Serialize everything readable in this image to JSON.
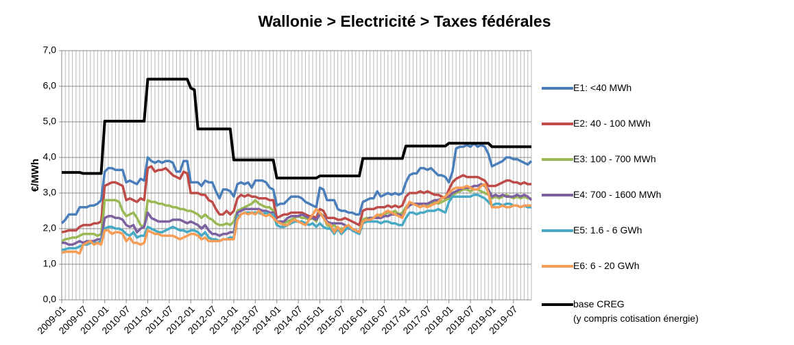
{
  "chart_data": {
    "type": "line",
    "title": "Wallonie > Electricité > Taxes fédérales",
    "y_label": "€/MWh",
    "categories": [
      "2009-01",
      null,
      null,
      null,
      null,
      null,
      "2009-07",
      null,
      null,
      null,
      null,
      null,
      "2010-01",
      null,
      null,
      null,
      null,
      null,
      "2010-07",
      null,
      null,
      null,
      null,
      null,
      "2011-01",
      null,
      null,
      null,
      null,
      null,
      "2011-07",
      null,
      null,
      null,
      null,
      null,
      "2012-01",
      null,
      null,
      null,
      null,
      null,
      "2012-07",
      null,
      null,
      null,
      null,
      null,
      "2013-01",
      null,
      null,
      null,
      null,
      null,
      "2013-07",
      null,
      null,
      null,
      null,
      null,
      "2014-01",
      null,
      null,
      null,
      null,
      null,
      "2014-07",
      null,
      null,
      null,
      null,
      null,
      "2015-01",
      null,
      null,
      null,
      null,
      null,
      "2015-07",
      null,
      null,
      null,
      null,
      null,
      "2016-01",
      null,
      null,
      null,
      null,
      null,
      "2016-07",
      null,
      null,
      null,
      null,
      null,
      "2017-01",
      null,
      null,
      null,
      null,
      null,
      "2017-07",
      null,
      null,
      null,
      null,
      null,
      "2018-01",
      null,
      null,
      null,
      null,
      null,
      "2018-07",
      null,
      null,
      null,
      null,
      null,
      "2019-01",
      null,
      null,
      null,
      null,
      null,
      "2019-07",
      null,
      null,
      null,
      null,
      null
    ],
    "ylim": [
      0,
      7
    ],
    "yticks": [
      {
        "value": 0,
        "label": "0,0"
      },
      {
        "value": 1,
        "label": "1,0"
      },
      {
        "value": 2,
        "label": "2,0"
      },
      {
        "value": 3,
        "label": "3,0"
      },
      {
        "value": 4,
        "label": "4,0"
      },
      {
        "value": 5,
        "label": "5,0"
      },
      {
        "value": 6,
        "label": "6,0"
      },
      {
        "value": 7,
        "label": "7,0"
      }
    ],
    "grid": true,
    "legend": "right",
    "series": [
      {
        "name": "E1: <40 MWh",
        "color": "#4a7ebb",
        "values": [
          2.15,
          2.25,
          2.4,
          2.4,
          2.4,
          2.6,
          2.6,
          2.6,
          2.65,
          2.65,
          2.7,
          2.8,
          3.6,
          3.7,
          3.7,
          3.65,
          3.65,
          3.65,
          3.3,
          3.35,
          3.3,
          3.25,
          3.4,
          3.35,
          4.0,
          3.9,
          3.85,
          3.9,
          3.85,
          3.9,
          3.9,
          3.85,
          3.6,
          3.6,
          3.9,
          3.9,
          3.3,
          3.3,
          3.3,
          3.2,
          3.35,
          3.3,
          3.3,
          3.05,
          2.85,
          3.1,
          3.1,
          3.05,
          2.9,
          3.25,
          3.3,
          3.25,
          3.3,
          3.15,
          3.35,
          3.35,
          3.35,
          3.3,
          3.15,
          3.1,
          2.65,
          2.7,
          2.7,
          2.8,
          2.9,
          2.9,
          2.9,
          2.85,
          2.75,
          2.7,
          2.65,
          2.6,
          3.15,
          3.1,
          2.8,
          2.8,
          2.8,
          2.55,
          2.5,
          2.5,
          2.45,
          2.45,
          2.4,
          2.4,
          2.75,
          2.8,
          2.85,
          2.85,
          3.05,
          2.9,
          2.95,
          3.0,
          2.95,
          3.0,
          2.95,
          3.0,
          3.3,
          3.5,
          3.55,
          3.55,
          3.7,
          3.7,
          3.65,
          3.7,
          3.6,
          3.5,
          3.5,
          3.45,
          3.3,
          3.6,
          4.25,
          4.3,
          4.3,
          4.35,
          4.3,
          4.4,
          4.3,
          4.35,
          4.3,
          4.1,
          3.75,
          3.8,
          3.85,
          3.9,
          4.0,
          4.0,
          3.95,
          3.95,
          3.9,
          3.85,
          3.8,
          3.9
        ]
      },
      {
        "name": "E2: 40 - 100 MWh",
        "color": "#be4b48",
        "values": [
          1.9,
          1.92,
          1.95,
          1.95,
          1.95,
          2.05,
          2.1,
          2.1,
          2.1,
          2.15,
          2.15,
          2.2,
          3.2,
          3.25,
          3.3,
          3.3,
          3.25,
          3.2,
          2.8,
          2.85,
          2.8,
          2.75,
          2.85,
          2.8,
          3.7,
          3.75,
          3.6,
          3.65,
          3.65,
          3.7,
          3.6,
          3.5,
          3.45,
          3.4,
          3.6,
          3.55,
          3.0,
          3.0,
          3.0,
          2.95,
          2.95,
          2.8,
          2.75,
          2.55,
          2.4,
          2.4,
          2.5,
          2.4,
          2.5,
          2.85,
          2.95,
          2.9,
          2.95,
          2.9,
          2.9,
          2.85,
          2.85,
          2.85,
          2.8,
          2.8,
          2.3,
          2.35,
          2.4,
          2.4,
          2.45,
          2.45,
          2.45,
          2.45,
          2.4,
          2.35,
          2.35,
          2.3,
          2.55,
          2.5,
          2.3,
          2.3,
          2.3,
          2.25,
          2.25,
          2.3,
          2.25,
          2.2,
          2.15,
          2.1,
          2.5,
          2.55,
          2.55,
          2.55,
          2.6,
          2.6,
          2.6,
          2.65,
          2.6,
          2.65,
          2.6,
          2.65,
          2.9,
          3.0,
          3.0,
          3.0,
          3.05,
          3.0,
          3.05,
          3.0,
          2.95,
          2.95,
          2.9,
          2.85,
          3.1,
          3.3,
          3.4,
          3.45,
          3.5,
          3.45,
          3.45,
          3.45,
          3.45,
          3.4,
          3.35,
          3.2,
          3.2,
          3.2,
          3.25,
          3.3,
          3.35,
          3.35,
          3.3,
          3.3,
          3.25,
          3.3,
          3.25,
          3.25
        ]
      },
      {
        "name": "E3: 100 - 700 MWh",
        "color": "#98b954",
        "values": [
          1.65,
          1.7,
          1.72,
          1.75,
          1.75,
          1.8,
          1.85,
          1.85,
          1.85,
          1.85,
          1.8,
          1.85,
          2.8,
          2.8,
          2.8,
          2.8,
          2.75,
          2.5,
          2.35,
          2.4,
          2.45,
          2.3,
          2.1,
          2.05,
          2.8,
          2.75,
          2.75,
          2.7,
          2.7,
          2.65,
          2.65,
          2.6,
          2.6,
          2.55,
          2.55,
          2.5,
          2.5,
          2.45,
          2.4,
          2.3,
          2.4,
          2.3,
          2.25,
          2.15,
          2.1,
          2.1,
          2.15,
          2.1,
          2.2,
          2.5,
          2.55,
          2.6,
          2.65,
          2.7,
          2.8,
          2.7,
          2.65,
          2.6,
          2.6,
          2.5,
          2.15,
          2.2,
          2.15,
          2.2,
          2.25,
          2.3,
          2.35,
          2.3,
          2.3,
          2.25,
          2.3,
          2.2,
          2.45,
          2.35,
          2.1,
          2.05,
          2.1,
          2.0,
          2.0,
          2.0,
          2.05,
          2.0,
          1.95,
          1.9,
          2.25,
          2.3,
          2.3,
          2.3,
          2.35,
          2.4,
          2.4,
          2.45,
          2.45,
          2.5,
          2.4,
          2.45,
          2.6,
          2.7,
          2.7,
          2.65,
          2.7,
          2.65,
          2.65,
          2.7,
          2.75,
          2.7,
          2.75,
          2.8,
          2.85,
          2.95,
          3.0,
          3.05,
          3.1,
          3.1,
          3.05,
          3.1,
          3.1,
          3.05,
          3.0,
          2.95,
          2.85,
          2.9,
          2.85,
          2.9,
          2.95,
          2.9,
          2.85,
          2.9,
          2.85,
          2.9,
          2.85,
          2.85
        ]
      },
      {
        "name": "E4: 700 - 1600 MWh",
        "color": "#7d60a0",
        "values": [
          1.6,
          1.6,
          1.55,
          1.55,
          1.6,
          1.65,
          1.6,
          1.65,
          1.65,
          1.65,
          1.7,
          1.7,
          2.3,
          2.35,
          2.35,
          2.3,
          2.3,
          2.25,
          2.1,
          2.05,
          2.1,
          1.9,
          2.0,
          2.05,
          2.45,
          2.3,
          2.25,
          2.2,
          2.2,
          2.2,
          2.2,
          2.25,
          2.25,
          2.25,
          2.2,
          2.15,
          2.2,
          2.15,
          2.1,
          2.0,
          2.1,
          1.95,
          1.85,
          1.85,
          1.8,
          1.85,
          1.85,
          1.9,
          1.9,
          2.45,
          2.5,
          2.55,
          2.55,
          2.55,
          2.55,
          2.55,
          2.5,
          2.5,
          2.45,
          2.45,
          2.2,
          2.2,
          2.2,
          2.3,
          2.35,
          2.35,
          2.35,
          2.4,
          2.35,
          2.3,
          2.3,
          2.25,
          2.4,
          2.35,
          2.2,
          2.15,
          2.15,
          2.15,
          2.15,
          2.1,
          2.0,
          2.0,
          1.95,
          1.9,
          2.2,
          2.25,
          2.3,
          2.3,
          2.3,
          2.3,
          2.35,
          2.35,
          2.4,
          2.4,
          2.4,
          2.35,
          2.55,
          2.65,
          2.7,
          2.7,
          2.7,
          2.7,
          2.7,
          2.75,
          2.8,
          2.8,
          2.85,
          2.9,
          2.9,
          3.0,
          3.05,
          3.1,
          3.15,
          3.15,
          3.15,
          3.2,
          3.2,
          3.25,
          3.2,
          3.1,
          2.9,
          2.95,
          2.9,
          2.95,
          2.9,
          2.9,
          2.9,
          2.95,
          2.9,
          2.95,
          2.9,
          2.8
        ]
      },
      {
        "name": "E5: 1.6 - 6 GWh",
        "color": "#46aac5",
        "values": [
          1.4,
          1.42,
          1.45,
          1.45,
          1.45,
          1.5,
          1.55,
          1.55,
          1.6,
          1.6,
          1.6,
          1.65,
          2.0,
          2.05,
          2.05,
          2.0,
          2.0,
          1.95,
          1.85,
          1.8,
          1.9,
          1.75,
          1.8,
          1.8,
          2.05,
          2.0,
          1.95,
          1.9,
          1.9,
          1.95,
          2.0,
          2.05,
          2.0,
          1.95,
          1.95,
          1.9,
          1.95,
          1.95,
          1.9,
          1.8,
          1.9,
          1.75,
          1.7,
          1.7,
          1.65,
          1.7,
          1.7,
          1.75,
          1.75,
          2.35,
          2.4,
          2.45,
          2.45,
          2.45,
          2.45,
          2.45,
          2.4,
          2.45,
          2.4,
          2.4,
          2.1,
          2.05,
          2.05,
          2.1,
          2.15,
          2.2,
          2.2,
          2.2,
          2.15,
          2.1,
          2.15,
          2.05,
          2.15,
          2.05,
          2.0,
          2.0,
          1.85,
          2.0,
          1.85,
          1.95,
          2.05,
          1.95,
          1.9,
          1.85,
          2.15,
          2.2,
          2.2,
          2.2,
          2.2,
          2.15,
          2.2,
          2.2,
          2.15,
          2.15,
          2.1,
          2.1,
          2.3,
          2.45,
          2.45,
          2.4,
          2.45,
          2.45,
          2.5,
          2.5,
          2.5,
          2.55,
          2.5,
          2.45,
          2.75,
          2.9,
          2.9,
          2.9,
          2.9,
          2.9,
          2.9,
          2.95,
          2.95,
          2.9,
          2.85,
          2.75,
          2.65,
          2.7,
          2.7,
          2.65,
          2.7,
          2.7,
          2.65,
          2.65,
          2.6,
          2.65,
          2.6,
          2.6
        ]
      },
      {
        "name": "E6: 6 - 20 GWh",
        "color": "#f59d56",
        "values": [
          1.32,
          1.35,
          1.35,
          1.35,
          1.35,
          1.3,
          1.55,
          1.6,
          1.65,
          1.55,
          1.6,
          1.55,
          1.95,
          1.95,
          1.85,
          1.9,
          1.9,
          1.85,
          1.65,
          1.75,
          1.6,
          1.6,
          1.55,
          1.6,
          1.95,
          1.9,
          1.85,
          1.85,
          1.8,
          1.8,
          1.8,
          1.8,
          1.75,
          1.7,
          1.75,
          1.8,
          1.85,
          1.85,
          1.8,
          1.7,
          1.75,
          1.65,
          1.65,
          1.65,
          1.65,
          1.7,
          1.7,
          1.7,
          1.7,
          2.25,
          2.4,
          2.45,
          2.4,
          2.45,
          2.4,
          2.5,
          2.4,
          2.35,
          2.4,
          2.3,
          2.2,
          2.15,
          2.1,
          2.1,
          2.2,
          2.25,
          2.2,
          2.15,
          2.1,
          2.25,
          2.4,
          2.55,
          2.45,
          2.3,
          2.15,
          2.1,
          1.9,
          2.05,
          1.9,
          2.05,
          2.1,
          2.0,
          1.95,
          1.9,
          2.2,
          2.25,
          2.25,
          2.3,
          2.4,
          2.35,
          2.45,
          2.5,
          2.45,
          2.4,
          2.35,
          2.3,
          2.55,
          2.75,
          2.7,
          2.65,
          2.6,
          2.65,
          2.6,
          2.65,
          2.7,
          2.75,
          2.85,
          2.9,
          3.0,
          3.1,
          3.15,
          3.15,
          3.15,
          3.2,
          3.15,
          3.1,
          3.1,
          3.2,
          3.25,
          3.0,
          2.6,
          2.6,
          2.6,
          2.65,
          2.6,
          2.6,
          2.65,
          2.65,
          2.6,
          2.65,
          2.65,
          2.65
        ]
      },
      {
        "name": "base CREG\n(y compris cotisation énergie)",
        "color": "#000000",
        "values": [
          3.58,
          3.58,
          3.58,
          3.58,
          3.58,
          3.58,
          3.55,
          3.55,
          3.55,
          3.55,
          3.55,
          3.55,
          5.02,
          5.02,
          5.02,
          5.02,
          5.02,
          5.02,
          5.02,
          5.02,
          5.02,
          5.02,
          5.02,
          5.02,
          6.2,
          6.2,
          6.2,
          6.2,
          6.2,
          6.2,
          6.2,
          6.2,
          6.2,
          6.2,
          6.2,
          6.2,
          5.95,
          5.9,
          4.8,
          4.8,
          4.8,
          4.8,
          4.8,
          4.8,
          4.8,
          4.8,
          4.8,
          4.8,
          3.93,
          3.93,
          3.93,
          3.93,
          3.93,
          3.93,
          3.93,
          3.93,
          3.93,
          3.93,
          3.93,
          3.93,
          3.42,
          3.42,
          3.42,
          3.42,
          3.42,
          3.42,
          3.42,
          3.42,
          3.42,
          3.42,
          3.42,
          3.42,
          3.48,
          3.48,
          3.48,
          3.48,
          3.48,
          3.48,
          3.48,
          3.48,
          3.48,
          3.48,
          3.48,
          3.48,
          3.97,
          3.97,
          3.97,
          3.97,
          3.97,
          3.97,
          3.97,
          3.97,
          3.97,
          3.97,
          3.97,
          3.97,
          4.32,
          4.32,
          4.32,
          4.32,
          4.32,
          4.32,
          4.32,
          4.32,
          4.32,
          4.32,
          4.32,
          4.32,
          4.4,
          4.4,
          4.4,
          4.4,
          4.4,
          4.4,
          4.4,
          4.4,
          4.4,
          4.4,
          4.4,
          4.4,
          4.3,
          4.3,
          4.3,
          4.3,
          4.3,
          4.3,
          4.3,
          4.3,
          4.3,
          4.3,
          4.3,
          4.3
        ]
      }
    ]
  }
}
